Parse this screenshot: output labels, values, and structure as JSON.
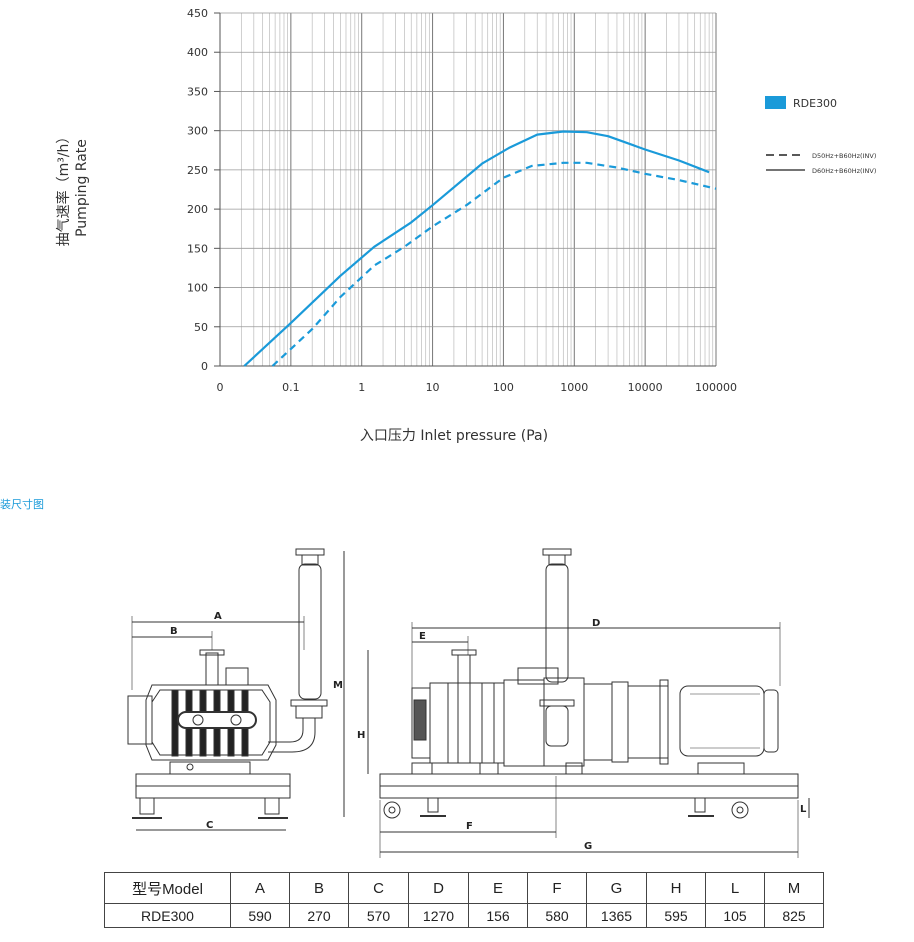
{
  "chart_data": {
    "type": "line",
    "ylabel_cn": "抽气速率（m³/h）",
    "ylabel_en": "Pumping Rate",
    "xlabel": "入口压力 Inlet pressure (Pa)",
    "x_scale": "log",
    "xlim": [
      0.01,
      100000
    ],
    "ylim": [
      0,
      450
    ],
    "y_ticks": [
      "0",
      "50",
      "100",
      "150",
      "200",
      "250",
      "300",
      "350",
      "400",
      "450"
    ],
    "x_ticks": [
      "0",
      "0.1",
      "1",
      "10",
      "100",
      "1000",
      "10000",
      "100000"
    ],
    "grid": true,
    "legend_position": "right",
    "legend": {
      "swatch_label": "RDE300",
      "dashed_label": "D50Hz+B60Hz(INV)",
      "solid_label": "D60Hz+B60Hz(INV)"
    },
    "colors": {
      "line": "#1a9ad9",
      "grid": "#aaaaaa",
      "axis": "#555555"
    },
    "series": [
      {
        "style": "solid",
        "x": [
          0.022,
          0.1,
          0.5,
          1.5,
          5,
          10,
          50,
          120,
          300,
          700,
          1500,
          3000,
          10000,
          30000,
          80000
        ],
        "y": [
          0,
          55,
          115,
          152,
          183,
          205,
          258,
          278,
          295,
          299,
          298,
          293,
          276,
          262,
          247
        ]
      },
      {
        "style": "dashed",
        "x": [
          0.055,
          0.2,
          0.5,
          1.5,
          4,
          10,
          30,
          100,
          250,
          700,
          1500,
          4000,
          10000,
          30000,
          100000
        ],
        "y": [
          0,
          47,
          88,
          128,
          152,
          178,
          205,
          240,
          255,
          259,
          259,
          253,
          245,
          237,
          226
        ]
      }
    ]
  },
  "section_title": "装尺寸图",
  "drawing": {
    "dimension_labels": [
      "A",
      "B",
      "C",
      "M",
      "D",
      "E",
      "H",
      "F",
      "G",
      "L"
    ]
  },
  "spec_table": {
    "headers": [
      "型号Model",
      "A",
      "B",
      "C",
      "D",
      "E",
      "F",
      "G",
      "H",
      "L",
      "M"
    ],
    "rows": [
      [
        "RDE300",
        "590",
        "270",
        "570",
        "1270",
        "156",
        "580",
        "1365",
        "595",
        "105",
        "825"
      ]
    ]
  }
}
